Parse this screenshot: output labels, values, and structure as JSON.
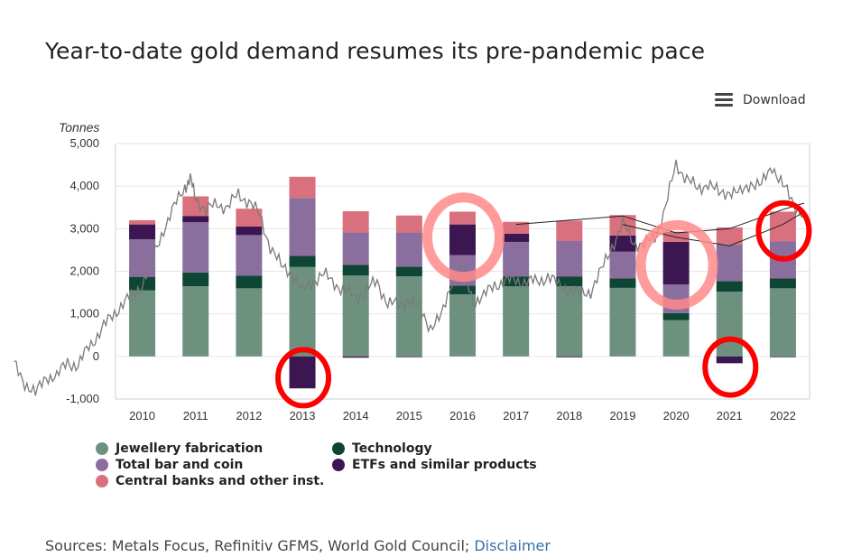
{
  "title": "Year-to-date gold demand resumes its pre-pandemic pace",
  "toolbar": {
    "download_label": "Download",
    "download_icon": "hamburger-menu-icon"
  },
  "sources": {
    "text": "Sources: Metals Focus, Refinitiv GFMS, World Gold Council; ",
    "link": "Disclaimer"
  },
  "colors": {
    "jewellery": "#6e917f",
    "technology": "#0f4535",
    "bar_coin": "#8a6f9e",
    "etfs": "#3b1650",
    "central_banks": "#d9707d",
    "price_line": "#7a7a7a",
    "circle_red": "#ff0000",
    "circle_pink": "#ff8a8a"
  },
  "chart_data": {
    "type": "bar",
    "stacked": true,
    "ylabel": "Tonnes",
    "ylim": [
      -1000,
      5000
    ],
    "yticks": [
      "-1,000",
      "0",
      "1,000",
      "2,000",
      "3,000",
      "4,000",
      "5,000"
    ],
    "ytick_values": [
      -1000,
      0,
      1000,
      2000,
      3000,
      4000,
      5000
    ],
    "grid": true,
    "legend_position": "bottom",
    "categories": [
      "2010",
      "2011",
      "2012",
      "2013",
      "2014",
      "2015",
      "2016",
      "2017",
      "2018",
      "2019",
      "2020",
      "2021",
      "2022"
    ],
    "series": [
      {
        "name": "Jewellery fabrication",
        "key": "jewellery",
        "values": [
          1550,
          1650,
          1600,
          2100,
          1900,
          1880,
          1460,
          1650,
          1650,
          1610,
          850,
          1520,
          1600
        ]
      },
      {
        "name": "Technology",
        "key": "technology",
        "values": [
          320,
          320,
          300,
          260,
          250,
          230,
          200,
          230,
          230,
          220,
          170,
          250,
          230
        ]
      },
      {
        "name": "Total bar and coin",
        "key": "bar_coin",
        "values": [
          880,
          1180,
          950,
          1360,
          760,
          800,
          720,
          810,
          830,
          630,
          670,
          860,
          870
        ]
      },
      {
        "name": "ETFs and similar products",
        "key": "etfs",
        "values": [
          350,
          150,
          200,
          -750,
          -30,
          -10,
          720,
          190,
          -20,
          380,
          1000,
          -160,
          -5
        ]
      },
      {
        "name": "Central banks and other inst.",
        "key": "central_banks",
        "values": [
          100,
          460,
          420,
          500,
          500,
          400,
          300,
          280,
          480,
          480,
          240,
          400,
          700
        ]
      }
    ],
    "overlay_line": {
      "name": "",
      "points": [
        [
          -2.4,
          -200
        ],
        [
          -2.2,
          -600
        ],
        [
          -2.0,
          -900
        ],
        [
          -1.8,
          -450
        ],
        [
          -1.6,
          -500
        ],
        [
          -1.4,
          -100
        ],
        [
          -1.2,
          -250
        ],
        [
          -1.0,
          250
        ],
        [
          -0.8,
          550
        ],
        [
          -0.6,
          900
        ],
        [
          -0.4,
          1200
        ],
        [
          -0.2,
          1400
        ],
        [
          0.0,
          1700
        ],
        [
          0.2,
          2300
        ],
        [
          0.4,
          3000
        ],
        [
          0.6,
          3500
        ],
        [
          0.8,
          4000
        ],
        [
          0.9,
          4150
        ],
        [
          1.0,
          3750
        ],
        [
          1.2,
          3400
        ],
        [
          1.4,
          3600
        ],
        [
          1.6,
          3500
        ],
        [
          1.8,
          3800
        ],
        [
          2.0,
          3650
        ],
        [
          2.2,
          3300
        ],
        [
          2.4,
          2600
        ],
        [
          2.6,
          2100
        ],
        [
          2.8,
          2000
        ],
        [
          3.0,
          1500
        ],
        [
          3.2,
          1800
        ],
        [
          3.4,
          1900
        ],
        [
          3.6,
          1750
        ],
        [
          3.8,
          1500
        ],
        [
          4.0,
          1400
        ],
        [
          4.2,
          1550
        ],
        [
          4.4,
          1750
        ],
        [
          4.6,
          1250
        ],
        [
          4.8,
          1200
        ],
        [
          5.0,
          1350
        ],
        [
          5.2,
          1100
        ],
        [
          5.4,
          700
        ],
        [
          5.6,
          900
        ],
        [
          5.8,
          1800
        ],
        [
          6.0,
          2100
        ],
        [
          6.2,
          1300
        ],
        [
          6.4,
          1400
        ],
        [
          6.6,
          1700
        ],
        [
          6.8,
          1750
        ],
        [
          7.0,
          1800
        ],
        [
          7.2,
          1750
        ],
        [
          7.4,
          1750
        ],
        [
          7.6,
          1900
        ],
        [
          7.8,
          1650
        ],
        [
          8.0,
          1600
        ],
        [
          8.2,
          1450
        ],
        [
          8.4,
          1550
        ],
        [
          8.6,
          2000
        ],
        [
          8.8,
          2600
        ],
        [
          9.0,
          3100
        ],
        [
          9.2,
          2700
        ],
        [
          9.4,
          2600
        ],
        [
          9.6,
          2800
        ],
        [
          9.8,
          3500
        ],
        [
          10.0,
          4500
        ],
        [
          10.2,
          4200
        ],
        [
          10.4,
          3900
        ],
        [
          10.6,
          4100
        ],
        [
          10.8,
          3800
        ],
        [
          11.0,
          3900
        ],
        [
          11.2,
          3800
        ],
        [
          11.4,
          4100
        ],
        [
          11.6,
          4000
        ],
        [
          11.8,
          4500
        ],
        [
          12.0,
          4000
        ],
        [
          12.2,
          3600
        ],
        [
          12.4,
          3300
        ]
      ]
    },
    "reference_lines": [
      {
        "points": [
          [
            9.0,
            3100
          ],
          [
            10.0,
            2800
          ],
          [
            11.0,
            2600
          ],
          [
            12.0,
            3100
          ],
          [
            12.4,
            3400
          ]
        ]
      },
      {
        "points": [
          [
            7.0,
            3100
          ],
          [
            8.0,
            3200
          ],
          [
            9.0,
            3300
          ],
          [
            10.0,
            2900
          ],
          [
            11.0,
            3000
          ],
          [
            12.0,
            3450
          ],
          [
            12.4,
            3600
          ]
        ]
      }
    ],
    "annotations": [
      {
        "type": "circle",
        "color": "red",
        "category": "2013",
        "center_value": -500
      },
      {
        "type": "circle",
        "color": "pink",
        "category": "2016",
        "center_value": 2800
      },
      {
        "type": "circle",
        "color": "pink",
        "category": "2020",
        "center_value": 2150
      },
      {
        "type": "circle",
        "color": "red",
        "category": "2021",
        "center_value": -250
      },
      {
        "type": "circle",
        "color": "red",
        "category": "2022",
        "center_value": 2950
      }
    ]
  }
}
